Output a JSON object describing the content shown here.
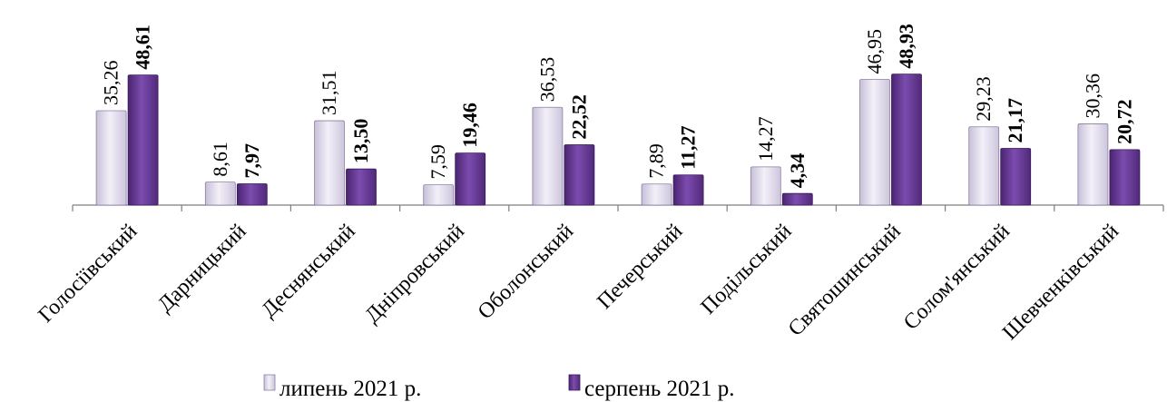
{
  "chart_data": {
    "type": "bar",
    "categories": [
      "Голосіївський",
      "Дарницький",
      "Деснянський",
      "Дніпровський",
      "Оболонський",
      "Печерський",
      "Подільський",
      "Святошинський",
      "Солом'янський",
      "Шевченківський"
    ],
    "series": [
      {
        "name": "липень 2021 р.",
        "values": [
          35.26,
          8.61,
          31.51,
          7.59,
          36.53,
          7.89,
          14.27,
          46.95,
          29.23,
          30.36
        ],
        "labels": [
          "35,26",
          "8,61",
          "31,51",
          "7,59",
          "36,53",
          "7,89",
          "14,27",
          "46,95",
          "29,23",
          "30,36"
        ],
        "color": "#dcd6e8"
      },
      {
        "name": "серпень 2021 р.",
        "values": [
          48.61,
          7.97,
          13.5,
          19.46,
          22.52,
          11.27,
          4.34,
          48.93,
          21.17,
          20.72
        ],
        "labels": [
          "48,61",
          "7,97",
          "13,50",
          "19,46",
          "22,52",
          "11,27",
          "4,34",
          "48,93",
          "21,17",
          "20,72"
        ],
        "color": "#6a3d9a"
      }
    ],
    "title": "",
    "xlabel": "",
    "ylabel": "",
    "ylim": [
      0,
      50
    ],
    "grid": false,
    "legend": "bottom"
  }
}
